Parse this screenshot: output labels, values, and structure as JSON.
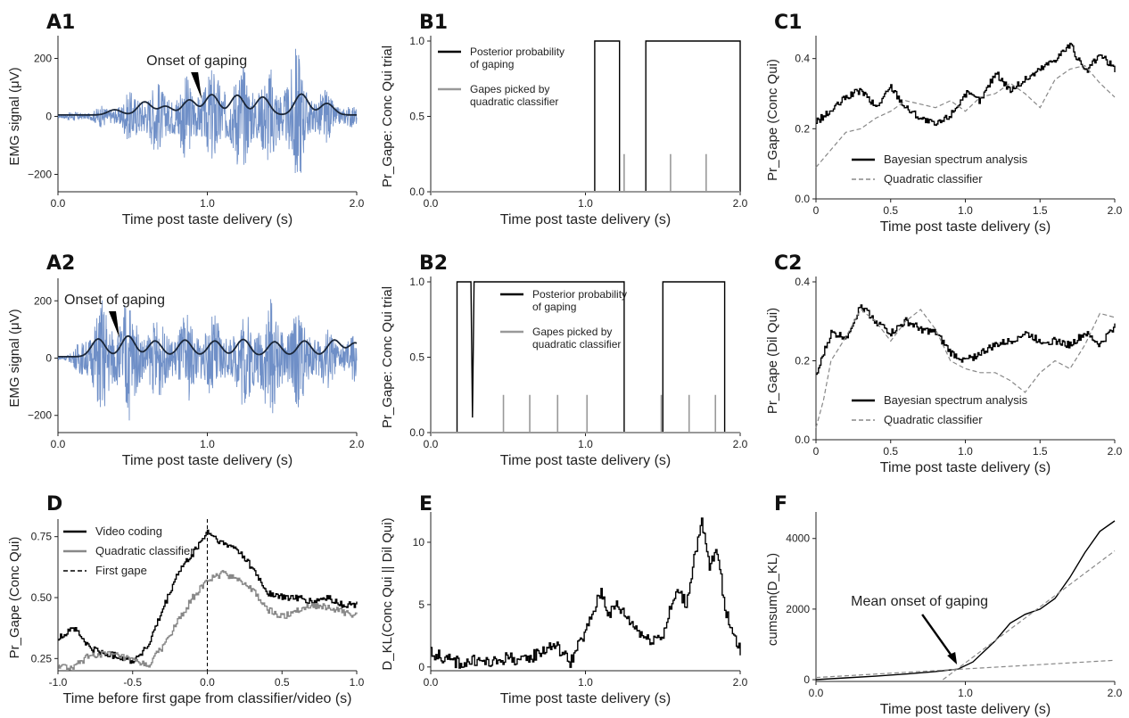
{
  "chart_data": [
    {
      "id": "A1",
      "type": "line",
      "label": "A1",
      "xlabel": "Time post taste delivery (s)",
      "ylabel": "EMG signal (μV)",
      "xlim": [
        0,
        2
      ],
      "ylim": [
        -260,
        260
      ],
      "xticks": [
        0,
        1,
        2
      ],
      "xtick_labels": [
        "0.0",
        "1.0",
        "2.0"
      ],
      "yticks": [
        -200,
        0,
        200
      ],
      "ytick_labels": [
        "−200",
        "0",
        "200"
      ],
      "annotation": {
        "text": "Onset of gaping",
        "x": 0.95,
        "y": 60
      },
      "series": [
        {
          "kind": "emg",
          "color": "#6f8fc7",
          "envelope_x": [
            0,
            0.1,
            0.2,
            0.3,
            0.4,
            0.5,
            0.55,
            0.6,
            0.8,
            1.0,
            1.2,
            1.3,
            1.4,
            1.5,
            1.6,
            1.7,
            1.8,
            1.9,
            2.0
          ],
          "envelope_y": [
            8,
            18,
            22,
            40,
            60,
            95,
            140,
            120,
            140,
            170,
            200,
            195,
            170,
            190,
            260,
            120,
            95,
            60,
            30
          ]
        },
        {
          "kind": "smooth",
          "color": "#1a2638",
          "peaks_x": [
            0.38,
            0.58,
            0.72,
            0.88,
            1.03,
            1.2,
            1.37,
            1.63,
            1.8
          ],
          "peaks_y": [
            18,
            45,
            30,
            52,
            70,
            68,
            62,
            72,
            40
          ]
        }
      ]
    },
    {
      "id": "B1",
      "type": "line",
      "label": "B1",
      "xlabel": "Time post taste delivery (s)",
      "ylabel": "Pr_Gape: Conc Qui trial",
      "xlim": [
        0,
        2
      ],
      "ylim": [
        0,
        1
      ],
      "xticks": [
        0,
        1,
        2
      ],
      "xtick_labels": [
        "0.0",
        "1.0",
        "2.0"
      ],
      "yticks": [
        0,
        0.5,
        1
      ],
      "ytick_labels": [
        "0.0",
        "0.5",
        "1.0"
      ],
      "legend": {
        "position": "upper-left",
        "entries": [
          "Posterior probability\nof gaping",
          "Gapes picked by\nquadratic classifier"
        ]
      },
      "series": [
        {
          "name": "Posterior probability of gaping",
          "color": "#000000",
          "x": [
            0,
            1.06,
            1.06,
            1.22,
            1.22,
            1.39,
            1.39,
            2.0,
            2.0
          ],
          "y": [
            0,
            0,
            1,
            1,
            0,
            0,
            1,
            1,
            0
          ]
        },
        {
          "name": "Gapes picked by quadratic classifier",
          "color": "#999999",
          "spikes": [
            1.25,
            1.55,
            1.78
          ],
          "height": 0.25
        }
      ]
    },
    {
      "id": "C1",
      "type": "line",
      "label": "C1",
      "xlabel": "Time post taste delivery (s)",
      "ylabel": "Pr_Gape (Conc Qui)",
      "xlim": [
        0,
        2
      ],
      "ylim": [
        0,
        0.45
      ],
      "xticks": [
        0,
        0.5,
        1,
        1.5,
        2
      ],
      "xtick_labels": [
        "0",
        "0.5",
        "1.0",
        "1.5",
        "2.0"
      ],
      "yticks": [
        0,
        0.2,
        0.4
      ],
      "ytick_labels": [
        "0.0",
        "0.2",
        "0.4"
      ],
      "legend": {
        "position": "lower-center",
        "entries": [
          "Bayesian spectrum analysis",
          "Quadratic classifier"
        ]
      },
      "series": [
        {
          "name": "Bayesian spectrum analysis",
          "color": "#000000",
          "style": "solid",
          "x": [
            0,
            0.1,
            0.2,
            0.3,
            0.4,
            0.5,
            0.6,
            0.7,
            0.8,
            0.9,
            1.0,
            1.1,
            1.2,
            1.3,
            1.4,
            1.5,
            1.6,
            1.7,
            1.8,
            1.9,
            2.0
          ],
          "y": [
            0.22,
            0.25,
            0.29,
            0.31,
            0.26,
            0.32,
            0.26,
            0.23,
            0.21,
            0.24,
            0.3,
            0.28,
            0.36,
            0.31,
            0.34,
            0.37,
            0.4,
            0.44,
            0.36,
            0.41,
            0.37
          ]
        },
        {
          "name": "Quadratic classifier",
          "color": "#888888",
          "style": "dashed",
          "x": [
            0,
            0.1,
            0.2,
            0.3,
            0.4,
            0.5,
            0.6,
            0.7,
            0.8,
            0.9,
            1.0,
            1.1,
            1.2,
            1.3,
            1.4,
            1.5,
            1.6,
            1.7,
            1.8,
            1.9,
            2.0
          ],
          "y": [
            0.09,
            0.14,
            0.19,
            0.2,
            0.23,
            0.25,
            0.28,
            0.27,
            0.26,
            0.28,
            0.25,
            0.29,
            0.3,
            0.33,
            0.3,
            0.26,
            0.34,
            0.37,
            0.38,
            0.33,
            0.29
          ]
        }
      ]
    },
    {
      "id": "A2",
      "type": "line",
      "label": "A2",
      "xlabel": "Time post taste delivery (s)",
      "ylabel": "EMG signal (μV)",
      "xlim": [
        0,
        2
      ],
      "ylim": [
        -260,
        260
      ],
      "xticks": [
        0,
        1,
        2
      ],
      "xtick_labels": [
        "0.0",
        "1.0",
        "2.0"
      ],
      "yticks": [
        -200,
        0,
        200
      ],
      "ytick_labels": [
        "−200",
        "0",
        "200"
      ],
      "annotation": {
        "text": "Onset of gaping",
        "x": 0.4,
        "y": 70
      },
      "series": [
        {
          "kind": "emg",
          "color": "#6f8fc7",
          "envelope_x": [
            0,
            0.1,
            0.15,
            0.2,
            0.3,
            0.4,
            0.45,
            0.5,
            0.7,
            0.9,
            1.1,
            1.2,
            1.3,
            1.5,
            1.7,
            1.8,
            1.9,
            2.0
          ],
          "envelope_y": [
            10,
            20,
            90,
            150,
            220,
            210,
            260,
            190,
            140,
            170,
            150,
            140,
            230,
            200,
            150,
            110,
            100,
            90
          ]
        },
        {
          "kind": "smooth",
          "color": "#1a2638",
          "peaks_x": [
            0.27,
            0.47,
            0.65,
            0.85,
            1.05,
            1.24,
            1.45,
            1.65,
            1.85,
            1.99
          ],
          "peaks_y": [
            62,
            72,
            55,
            58,
            55,
            60,
            52,
            55,
            58,
            48
          ]
        }
      ]
    },
    {
      "id": "B2",
      "type": "line",
      "label": "B2",
      "xlabel": "Time post taste delivery (s)",
      "ylabel": "Pr_Gape: Conc Qui trial",
      "xlim": [
        0,
        2
      ],
      "ylim": [
        0,
        1
      ],
      "xticks": [
        0,
        1,
        2
      ],
      "xtick_labels": [
        "0.0",
        "1.0",
        "2.0"
      ],
      "yticks": [
        0,
        0.5,
        1
      ],
      "ytick_labels": [
        "0.0",
        "0.5",
        "1.0"
      ],
      "legend": {
        "position": "upper-right",
        "entries": [
          "Posterior probability\nof gaping",
          "Gapes picked by\nquadratic classifier"
        ]
      },
      "series": [
        {
          "name": "Posterior probability of gaping",
          "color": "#000000",
          "x": [
            0,
            0.17,
            0.17,
            0.26,
            0.27,
            0.28,
            1.25,
            1.25,
            1.5,
            1.5,
            1.9,
            1.9,
            2.0
          ],
          "y": [
            0,
            0,
            1,
            1,
            0.1,
            1,
            1,
            0,
            0,
            1,
            1,
            0,
            0
          ]
        },
        {
          "name": "Gapes picked by quadratic classifier",
          "color": "#999999",
          "spikes": [
            0.47,
            0.64,
            0.82,
            1.01,
            1.49,
            1.67,
            1.84
          ],
          "height": 0.25
        }
      ]
    },
    {
      "id": "C2",
      "type": "line",
      "label": "C2",
      "xlabel": "Time post taste delivery (s)",
      "ylabel": "Pr_Gape (Dil Qui)",
      "xlim": [
        0,
        2
      ],
      "ylim": [
        0,
        0.4
      ],
      "xticks": [
        0,
        0.5,
        1,
        1.5,
        2
      ],
      "xtick_labels": [
        "0",
        "0.5",
        "1.0",
        "1.5",
        "2.0"
      ],
      "yticks": [
        0,
        0.2,
        0.4
      ],
      "ytick_labels": [
        "0.0",
        "0.2",
        "0.4"
      ],
      "legend": {
        "position": "lower-center",
        "entries": [
          "Bayesian spectrum analysis",
          "Quadratic classifier"
        ]
      },
      "series": [
        {
          "name": "Bayesian spectrum analysis",
          "color": "#000000",
          "style": "solid",
          "x": [
            0,
            0.05,
            0.1,
            0.2,
            0.3,
            0.4,
            0.5,
            0.6,
            0.7,
            0.8,
            0.9,
            1.0,
            1.1,
            1.2,
            1.3,
            1.4,
            1.5,
            1.6,
            1.7,
            1.8,
            1.9,
            2.0
          ],
          "y": [
            0.16,
            0.22,
            0.27,
            0.26,
            0.34,
            0.3,
            0.27,
            0.3,
            0.28,
            0.27,
            0.22,
            0.2,
            0.22,
            0.24,
            0.25,
            0.27,
            0.25,
            0.25,
            0.24,
            0.27,
            0.24,
            0.29
          ]
        },
        {
          "name": "Quadratic classifier",
          "color": "#888888",
          "style": "dashed",
          "x": [
            0,
            0.05,
            0.1,
            0.2,
            0.3,
            0.4,
            0.5,
            0.6,
            0.7,
            0.8,
            0.9,
            1.0,
            1.1,
            1.2,
            1.3,
            1.4,
            1.5,
            1.6,
            1.7,
            1.8,
            1.9,
            2.0
          ],
          "y": [
            0.03,
            0.1,
            0.2,
            0.26,
            0.33,
            0.3,
            0.25,
            0.3,
            0.33,
            0.28,
            0.2,
            0.18,
            0.17,
            0.17,
            0.15,
            0.12,
            0.17,
            0.2,
            0.18,
            0.24,
            0.32,
            0.31
          ]
        }
      ]
    },
    {
      "id": "D",
      "type": "line",
      "label": "D",
      "xlabel": "Time before first gape from classifier/video (s)",
      "ylabel": "Pr_Gape (Conc Qui)",
      "xlim": [
        -1,
        1
      ],
      "ylim": [
        0.2,
        0.8
      ],
      "xticks": [
        -1,
        -0.5,
        0,
        0.5,
        1
      ],
      "xtick_labels": [
        "-1.0",
        "-0.5",
        "0.0",
        "0.5",
        "1.0"
      ],
      "yticks": [
        0.25,
        0.5,
        0.75
      ],
      "ytick_labels": [
        "0.25",
        "0.50",
        "0.75"
      ],
      "legend": {
        "position": "upper-left",
        "entries": [
          "Video coding",
          "Quadratic classifier",
          "First gape"
        ]
      },
      "series": [
        {
          "name": "Video coding",
          "color": "#000000",
          "style": "solid",
          "x": [
            -1.0,
            -0.9,
            -0.8,
            -0.7,
            -0.6,
            -0.5,
            -0.4,
            -0.3,
            -0.2,
            -0.1,
            0.0,
            0.1,
            0.2,
            0.3,
            0.4,
            0.5,
            0.6,
            0.7,
            0.8,
            0.9,
            1.0
          ],
          "y": [
            0.33,
            0.38,
            0.3,
            0.27,
            0.26,
            0.24,
            0.3,
            0.45,
            0.6,
            0.68,
            0.77,
            0.72,
            0.7,
            0.62,
            0.52,
            0.5,
            0.5,
            0.48,
            0.5,
            0.47,
            0.47
          ]
        },
        {
          "name": "Quadratic classifier",
          "color": "#888888",
          "style": "solid",
          "x": [
            -1.0,
            -0.9,
            -0.8,
            -0.7,
            -0.6,
            -0.5,
            -0.4,
            -0.3,
            -0.2,
            -0.1,
            0.0,
            0.1,
            0.2,
            0.3,
            0.4,
            0.5,
            0.6,
            0.7,
            0.8,
            0.9,
            1.0
          ],
          "y": [
            0.22,
            0.21,
            0.26,
            0.27,
            0.26,
            0.24,
            0.22,
            0.3,
            0.4,
            0.5,
            0.57,
            0.6,
            0.58,
            0.53,
            0.45,
            0.42,
            0.45,
            0.47,
            0.46,
            0.44,
            0.43
          ]
        },
        {
          "name": "First gape",
          "color": "#000000",
          "style": "dashed",
          "vline": 0
        }
      ]
    },
    {
      "id": "E",
      "type": "line",
      "label": "E",
      "xlabel": "Time post taste delivery (s)",
      "ylabel": "D_KL(Conc Qui || Dil Qui)",
      "xlim": [
        0,
        2
      ],
      "ylim": [
        -0.3,
        12
      ],
      "xticks": [
        0,
        1,
        2
      ],
      "xtick_labels": [
        "0.0",
        "1.0",
        "2.0"
      ],
      "yticks": [
        0,
        5,
        10
      ],
      "ytick_labels": [
        "0",
        "5",
        "10"
      ],
      "series": [
        {
          "color": "#000000",
          "x": [
            0,
            0.1,
            0.2,
            0.3,
            0.4,
            0.5,
            0.6,
            0.7,
            0.8,
            0.9,
            1.0,
            1.05,
            1.1,
            1.15,
            1.2,
            1.3,
            1.4,
            1.5,
            1.55,
            1.6,
            1.65,
            1.7,
            1.75,
            1.8,
            1.85,
            1.9,
            1.95,
            2.0
          ],
          "y": [
            1.2,
            0.6,
            0.3,
            0.5,
            0.3,
            0.8,
            0.4,
            1.2,
            1.8,
            0.4,
            2.8,
            4.5,
            6.1,
            4.2,
            5.0,
            3.5,
            2.2,
            2.6,
            4.8,
            6.2,
            5.0,
            8.8,
            11.5,
            8.0,
            9.5,
            4.5,
            3.0,
            1.2
          ]
        }
      ]
    },
    {
      "id": "F",
      "type": "line",
      "label": "F",
      "xlabel": "Time post taste delivery (s)",
      "ylabel": "cumsum(D_KL)",
      "xlim": [
        0,
        2
      ],
      "ylim": [
        -50,
        4600
      ],
      "xticks": [
        0,
        1,
        2
      ],
      "xtick_labels": [
        "0.0",
        "1.0",
        "2.0"
      ],
      "yticks": [
        0,
        2000,
        4000
      ],
      "ytick_labels": [
        "0",
        "2000",
        "4000"
      ],
      "annotation": {
        "text": "Mean onset of gaping",
        "x": 0.95,
        "y": 330
      },
      "series": [
        {
          "color": "#000000",
          "style": "solid",
          "x": [
            0,
            0.2,
            0.4,
            0.6,
            0.8,
            0.95,
            1.05,
            1.2,
            1.3,
            1.4,
            1.5,
            1.6,
            1.7,
            1.8,
            1.9,
            2.0
          ],
          "y": [
            0,
            50,
            100,
            160,
            230,
            300,
            500,
            1100,
            1600,
            1850,
            2000,
            2300,
            2900,
            3600,
            4200,
            4500
          ]
        },
        {
          "color": "#888888",
          "style": "dashed",
          "x": [
            0,
            2.0
          ],
          "y": [
            60,
            550
          ]
        },
        {
          "color": "#888888",
          "style": "dashed",
          "x": [
            0.85,
            2.0
          ],
          "y": [
            0,
            3650
          ]
        }
      ]
    }
  ]
}
